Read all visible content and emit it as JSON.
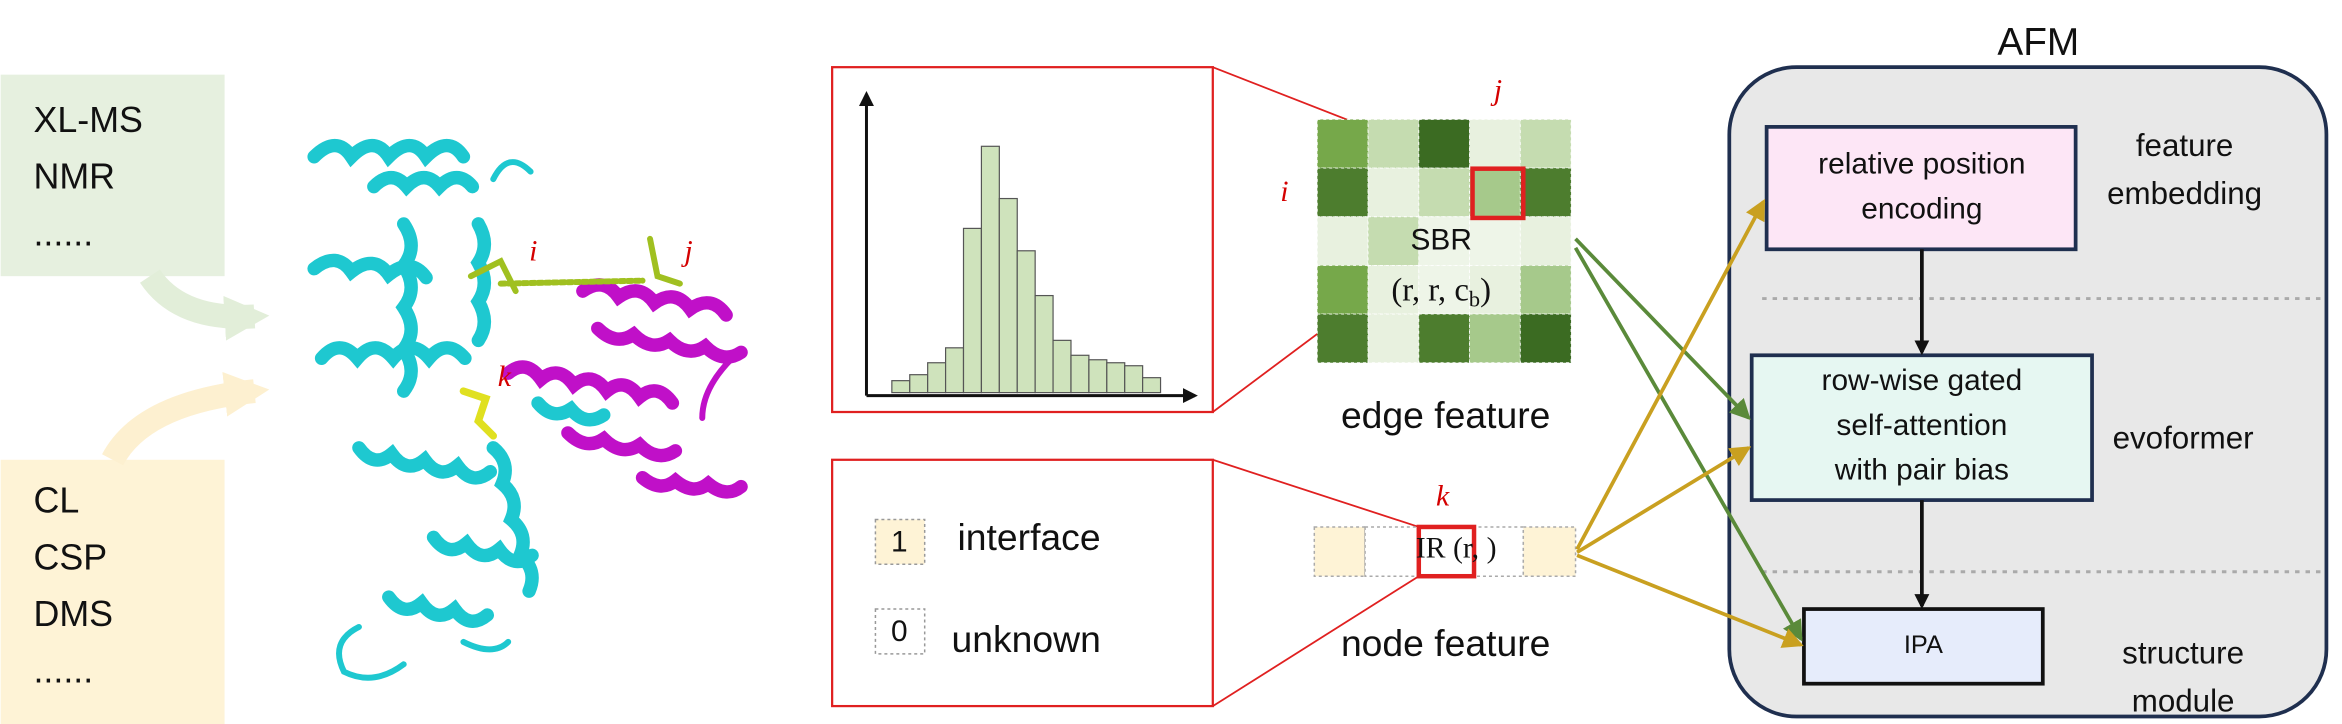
{
  "sources": {
    "experimental_group": [
      "XL-MS",
      "NMR",
      "......"
    ],
    "interface_group": [
      "CL",
      "CSP",
      "DMS",
      "......"
    ]
  },
  "protein": {
    "residue_i": "i",
    "residue_j": "j",
    "residue_k": "k"
  },
  "edge": {
    "col_label": "j",
    "row_label": "i",
    "sbr": "SBR",
    "sbr_args_main": "(r, r, c",
    "sbr_args_sub": "b",
    "sbr_args_close": ")",
    "caption": "edge feature"
  },
  "node": {
    "legend": [
      {
        "code": "1",
        "label": "interface"
      },
      {
        "code": "0",
        "label": "unknown"
      }
    ],
    "residue_label": "k",
    "ir": "IR (r, )",
    "caption": "node feature"
  },
  "afm": {
    "title": "AFM",
    "modules": [
      {
        "box": [
          "relative position",
          "encoding"
        ],
        "stage": [
          "feature",
          "embedding"
        ]
      },
      {
        "box": [
          "row-wise gated",
          "self-attention",
          "with pair bias"
        ],
        "stage": [
          "evoformer"
        ]
      },
      {
        "box": [
          "IPA"
        ],
        "stage": [
          "structure",
          "module"
        ]
      }
    ]
  }
}
